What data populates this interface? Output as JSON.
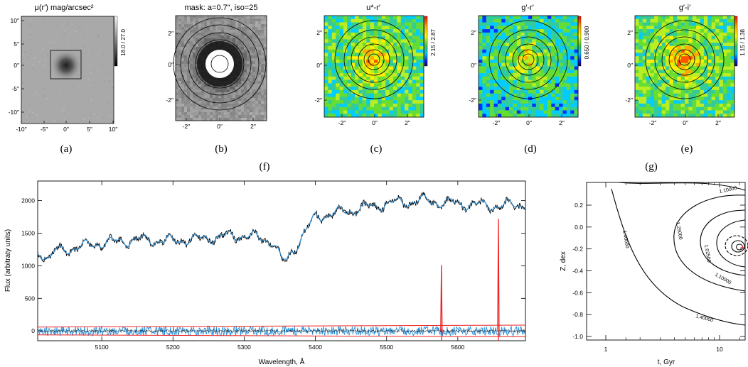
{
  "figure": {
    "panels": [
      {
        "id": "a",
        "title": "μ(r′) mag/arcsec²",
        "label": "(a)",
        "colorbar": "18.0 / 27.0",
        "xticks": [
          "-10″",
          "-5″",
          "0″",
          "5″",
          "10″"
        ],
        "yticks": [
          "10″",
          "5″",
          "0″",
          "-5″",
          "-10″"
        ]
      },
      {
        "id": "b",
        "title": "mask: a=0.7″, iso=25",
        "label": "(b)",
        "xticks": [
          "-2″",
          "0″",
          "2″"
        ],
        "yticks": [
          "2″",
          "0″",
          "-2″"
        ]
      },
      {
        "id": "c",
        "title": "u*-r′",
        "label": "(c)",
        "colorbar": "2.15 / 2.87",
        "xticks": [
          "-2″",
          "0″",
          "2″"
        ],
        "yticks": [
          "2″",
          "0″",
          "-2″"
        ]
      },
      {
        "id": "d",
        "title": "g′-r′",
        "label": "(d)",
        "colorbar": "0.650 / 0.900",
        "xticks": [
          "-2″",
          "0″",
          "2″"
        ],
        "yticks": [
          "2″",
          "0″",
          "-2″"
        ]
      },
      {
        "id": "e",
        "title": "g′-i′",
        "label": "(e)",
        "colorbar": "1.15 / 1.38",
        "xticks": [
          "-2″",
          "0″",
          "2″"
        ],
        "yticks": [
          "2″",
          "0″",
          "-2″"
        ]
      }
    ],
    "label_f": "(f)",
    "label_g": "(g)",
    "spectrum": {
      "xlabel": "Wavelength, Å",
      "ylabel": "Flux (arbitraty units)",
      "xticks": [
        5100,
        5200,
        5300,
        5400,
        5500,
        5600
      ],
      "yticks": [
        0,
        500,
        1000,
        1500,
        2000
      ],
      "xlim": [
        5010,
        5695
      ],
      "ylim": [
        -150,
        2300
      ]
    },
    "contour": {
      "xlabel": "t, Gyr",
      "ylabel": "Z, dex",
      "xticks": [
        "1",
        "10"
      ],
      "yticks": [
        "0.2",
        "0.0",
        "-0.2",
        "-0.4",
        "-0.6",
        "-0.8",
        "-1.0"
      ],
      "labels": [
        "1.10000",
        "1.40000",
        "1.25000",
        "1.02500",
        "1.10000",
        "1.40000"
      ]
    }
  },
  "chart_data": [
    {
      "type": "line",
      "title": "",
      "xlabel": "Wavelength, Å",
      "ylabel": "Flux (arbitraty units)",
      "xlim": [
        5010,
        5695
      ],
      "ylim": [
        -150,
        2300
      ],
      "series": [],
      "x": [
        5010,
        5050,
        5100,
        5150,
        5200,
        5250,
        5300,
        5340,
        5360,
        5400,
        5450,
        5500,
        5550,
        5600,
        5650,
        5695
      ],
      "values": [
        1180,
        1250,
        1350,
        1400,
        1380,
        1430,
        1470,
        1380,
        1100,
        1750,
        1850,
        1950,
        2000,
        1950,
        1920,
        1940
      ]
    }
  ]
}
